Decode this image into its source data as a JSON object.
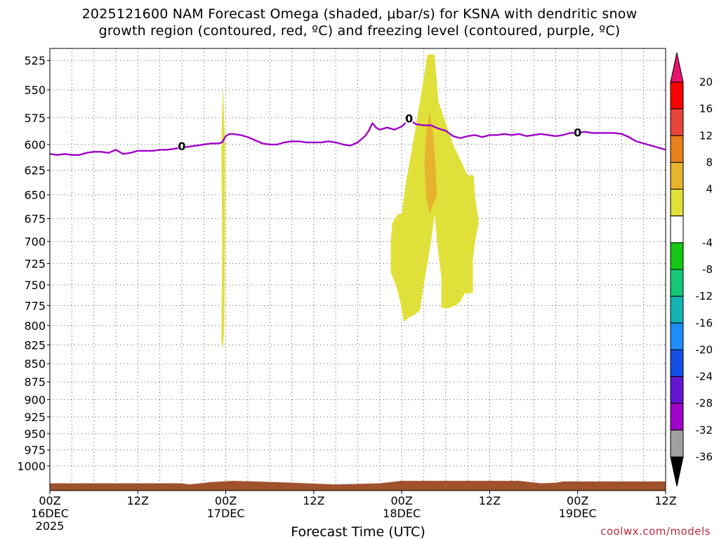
{
  "title": {
    "line1": "2025121600 NAM Forecast Omega (shaded, μbar/s) for KSNA with dendritic snow",
    "line2": "growth region (contoured, red, ºC) and freezing level (contoured, purple, ºC)"
  },
  "credit": "coolwx.com/models",
  "chart_data": {
    "type": "time-height cross section",
    "title": "2025121600 NAM Forecast Omega (shaded, μbar/s) for KSNA with dendritic snow growth region (contoured, red, ºC) and freezing level (contoured, purple, ºC)",
    "xlabel": "Forecast Time (UTC)",
    "ylabel": "",
    "grid": true,
    "x_unit": "hours since 2025-12-16 00Z",
    "xlim": [
      0,
      84
    ],
    "y_unit": "hPa",
    "ylim": [
      1040,
      515
    ],
    "y_scale": "log-pressure (inverted)",
    "x_ticks": [
      {
        "x": 0,
        "l1": "00Z",
        "l2": "16DEC",
        "l3": "2025"
      },
      {
        "x": 12,
        "l1": "12Z",
        "l2": "",
        "l3": ""
      },
      {
        "x": 24,
        "l1": "00Z",
        "l2": "17DEC",
        "l3": ""
      },
      {
        "x": 36,
        "l1": "12Z",
        "l2": "",
        "l3": ""
      },
      {
        "x": 48,
        "l1": "00Z",
        "l2": "18DEC",
        "l3": ""
      },
      {
        "x": 60,
        "l1": "12Z",
        "l2": "",
        "l3": ""
      },
      {
        "x": 72,
        "l1": "00Z",
        "l2": "19DEC",
        "l3": ""
      },
      {
        "x": 84,
        "l1": "12Z",
        "l2": "",
        "l3": ""
      }
    ],
    "y_ticks": [
      525,
      550,
      575,
      600,
      625,
      650,
      675,
      700,
      725,
      750,
      775,
      800,
      825,
      850,
      875,
      900,
      925,
      950,
      975,
      1000
    ],
    "freezing_level": {
      "name": "freezing level",
      "color": "#a000c8",
      "label": "0",
      "label_positions": [
        {
          "x": 18,
          "p": 602
        },
        {
          "x": 49,
          "p": 576
        },
        {
          "x": 72,
          "p": 589
        }
      ],
      "points": [
        [
          0,
          609
        ],
        [
          1,
          610
        ],
        [
          2,
          609
        ],
        [
          3,
          610
        ],
        [
          4,
          610
        ],
        [
          5,
          608
        ],
        [
          6,
          607
        ],
        [
          7,
          607
        ],
        [
          8,
          608
        ],
        [
          9,
          605
        ],
        [
          10,
          609
        ],
        [
          11,
          608
        ],
        [
          12,
          606
        ],
        [
          13,
          606
        ],
        [
          14,
          606
        ],
        [
          15,
          605
        ],
        [
          16,
          605
        ],
        [
          17,
          604
        ],
        [
          18,
          603
        ],
        [
          19,
          602
        ],
        [
          20,
          601
        ],
        [
          21,
          600
        ],
        [
          22,
          599
        ],
        [
          23,
          599
        ],
        [
          23.5,
          598
        ],
        [
          24,
          592
        ],
        [
          24.5,
          590
        ],
        [
          25,
          590
        ],
        [
          26,
          591
        ],
        [
          27,
          593
        ],
        [
          28,
          596
        ],
        [
          29,
          599
        ],
        [
          30,
          600
        ],
        [
          31,
          600
        ],
        [
          32,
          598
        ],
        [
          33,
          597
        ],
        [
          34,
          597
        ],
        [
          35,
          598
        ],
        [
          36,
          598
        ],
        [
          37,
          598
        ],
        [
          38,
          597
        ],
        [
          39,
          598
        ],
        [
          40,
          600
        ],
        [
          41,
          601
        ],
        [
          42,
          598
        ],
        [
          43,
          592
        ],
        [
          43.5,
          587
        ],
        [
          44,
          580
        ],
        [
          44.5,
          584
        ],
        [
          45,
          586
        ],
        [
          46,
          584
        ],
        [
          47,
          586
        ],
        [
          48,
          583
        ],
        [
          49,
          577
        ],
        [
          50,
          581
        ],
        [
          51,
          582
        ],
        [
          52,
          582
        ],
        [
          53,
          585
        ],
        [
          54,
          587
        ],
        [
          55,
          592
        ],
        [
          56,
          594
        ],
        [
          57,
          592
        ],
        [
          58,
          591
        ],
        [
          59,
          593
        ],
        [
          60,
          591
        ],
        [
          61,
          591
        ],
        [
          62,
          590
        ],
        [
          63,
          591
        ],
        [
          64,
          590
        ],
        [
          65,
          592
        ],
        [
          66,
          591
        ],
        [
          67,
          590
        ],
        [
          68,
          591
        ],
        [
          69,
          592
        ],
        [
          70,
          591
        ],
        [
          71,
          589
        ],
        [
          72,
          589
        ],
        [
          73,
          588
        ],
        [
          74,
          589
        ],
        [
          75,
          589
        ],
        [
          76,
          589
        ],
        [
          77,
          589
        ],
        [
          78,
          590
        ],
        [
          79,
          593
        ],
        [
          80,
          597
        ],
        [
          81,
          599
        ],
        [
          82,
          601
        ],
        [
          83,
          603
        ],
        [
          84,
          605
        ]
      ]
    },
    "omega_regions": [
      {
        "level": "4 to 8",
        "color": "#e0e03a",
        "points": [
          [
            23.6,
            545
          ],
          [
            23.9,
            600
          ],
          [
            23.9,
            700
          ],
          [
            23.8,
            800
          ],
          [
            23.6,
            830
          ],
          [
            23.4,
            820
          ],
          [
            23.5,
            700
          ],
          [
            23.4,
            600
          ]
        ]
      },
      {
        "level": "4 to 8",
        "color": "#e0e03a",
        "points": [
          [
            51.5,
            520
          ],
          [
            52.5,
            520
          ],
          [
            53,
            560
          ],
          [
            55,
            600
          ],
          [
            57,
            630
          ],
          [
            57.8,
            630
          ],
          [
            58,
            650
          ],
          [
            58.5,
            680
          ],
          [
            58,
            700
          ],
          [
            57.7,
            720
          ],
          [
            57.7,
            760
          ],
          [
            56.6,
            760
          ],
          [
            56,
            770
          ],
          [
            55.3,
            775
          ],
          [
            54.5,
            778
          ],
          [
            53.4,
            778
          ],
          [
            53.4,
            740
          ],
          [
            52.8,
            700
          ],
          [
            52.5,
            670
          ],
          [
            52,
            700
          ],
          [
            51,
            750
          ],
          [
            50.5,
            780
          ],
          [
            50,
            785
          ],
          [
            49,
            790
          ],
          [
            48.3,
            795
          ],
          [
            47.8,
            770
          ],
          [
            47.2,
            750
          ],
          [
            46.5,
            735
          ],
          [
            46.5,
            700
          ],
          [
            46.7,
            680
          ],
          [
            47.5,
            670
          ],
          [
            48,
            670
          ],
          [
            48.5,
            640
          ],
          [
            49.5,
            600
          ],
          [
            50.5,
            560
          ],
          [
            51,
            540
          ]
        ]
      },
      {
        "level": "8 to 12",
        "color": "#e8b32c",
        "points": [
          [
            51.8,
            570
          ],
          [
            52.3,
            590
          ],
          [
            52.6,
            620
          ],
          [
            52.8,
            650
          ],
          [
            52.3,
            660
          ],
          [
            51.8,
            670
          ],
          [
            51.3,
            650
          ],
          [
            51.1,
            620
          ],
          [
            51.3,
            590
          ]
        ]
      }
    ],
    "ground": {
      "color": "#a0522d",
      "points": [
        [
          0,
          1028
        ],
        [
          18,
          1028
        ],
        [
          19,
          1030
        ],
        [
          22,
          1026
        ],
        [
          25,
          1024
        ],
        [
          33,
          1027
        ],
        [
          39,
          1030
        ],
        [
          45,
          1028
        ],
        [
          48,
          1024
        ],
        [
          56,
          1024
        ],
        [
          64,
          1024
        ],
        [
          67,
          1028
        ],
        [
          69,
          1027
        ],
        [
          70,
          1025
        ],
        [
          84,
          1025
        ]
      ]
    },
    "colorbar": {
      "levels": [
        "20",
        "16",
        "12",
        "8",
        "4",
        "-4",
        "-8",
        "-12",
        "-16",
        "-20",
        "-24",
        "-28",
        "-32",
        "-36"
      ],
      "colors": [
        "#ff0000",
        "#e8443a",
        "#e8801c",
        "#e8b32c",
        "#e0e03a",
        "#ffffff",
        "#14c814",
        "#14c878",
        "#14b4b4",
        "#1e8cff",
        "#1450e6",
        "#6414d2",
        "#a000c8",
        "#a0a0a0"
      ],
      "top_arrow_color": "#e8146e",
      "bottom_arrow_color": "#000000"
    }
  }
}
